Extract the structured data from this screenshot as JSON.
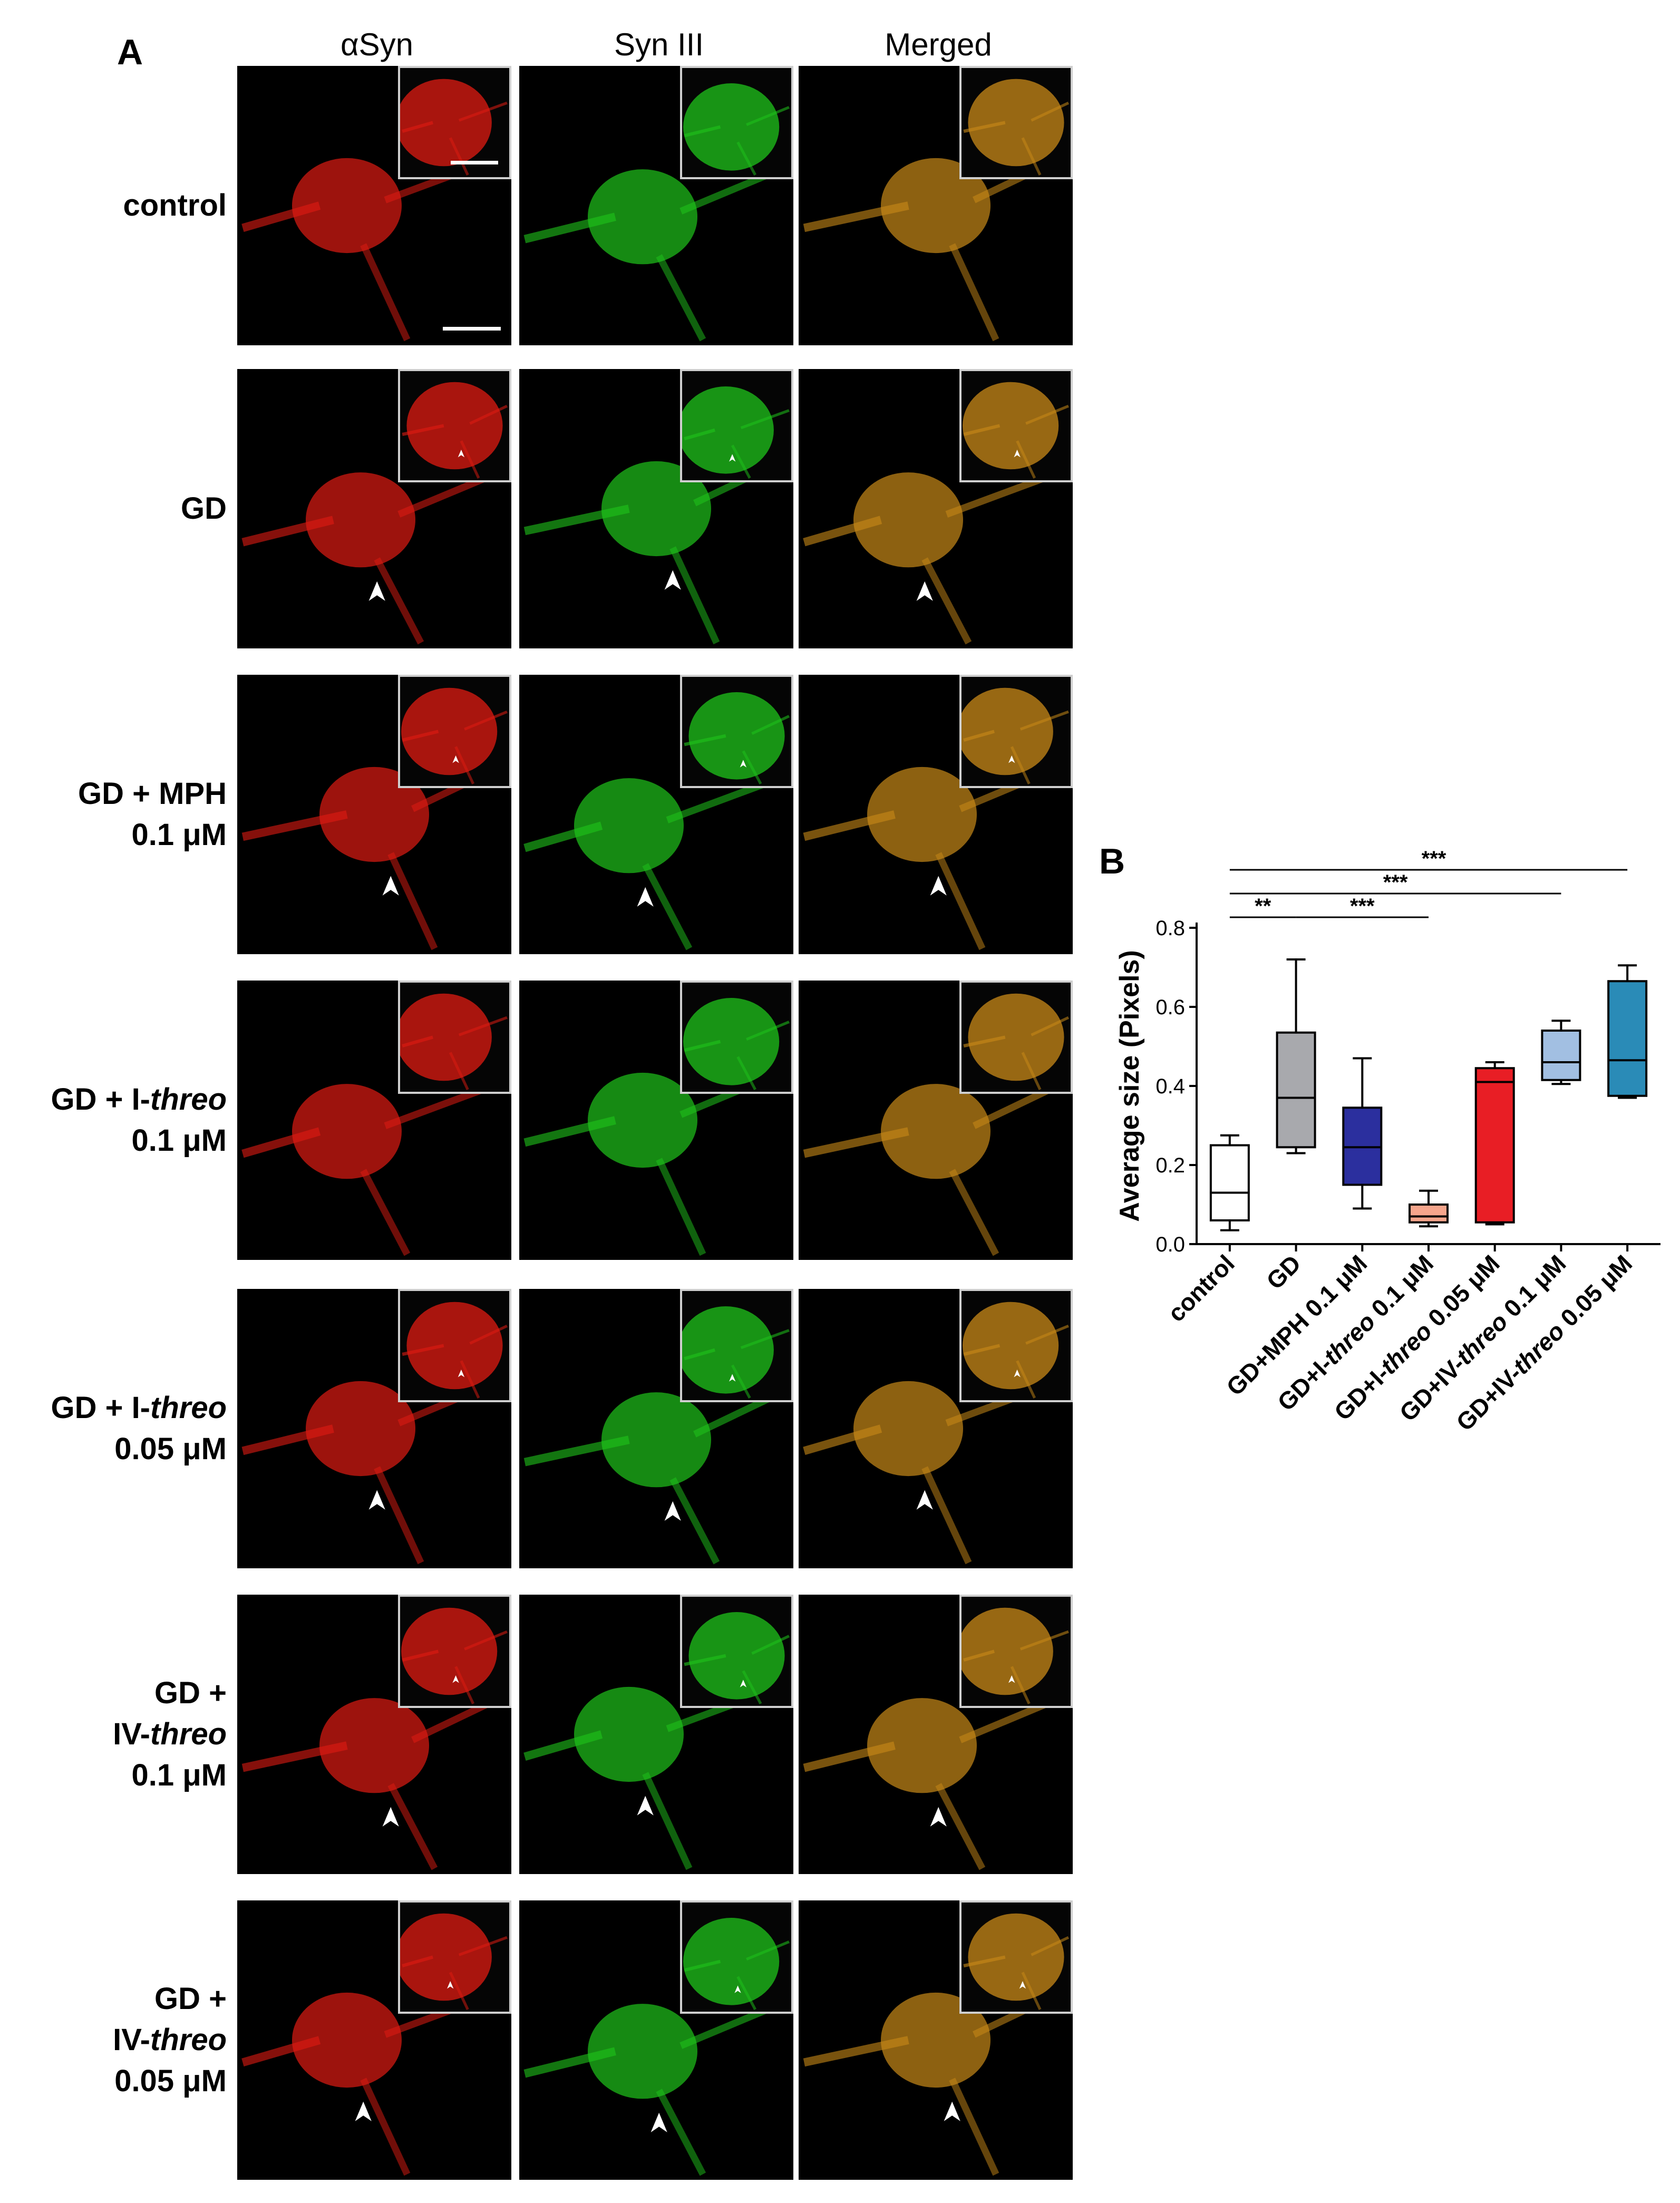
{
  "panel_a": {
    "letter": "A",
    "columns": [
      "αSyn",
      "Syn III",
      "Merged"
    ],
    "rows": [
      {
        "label_lines": [
          "control"
        ],
        "arrowheads": false
      },
      {
        "label_lines": [
          "GD"
        ],
        "arrowheads": true
      },
      {
        "label_lines": [
          "GD + MPH",
          "0.1  μM"
        ],
        "arrowheads": true
      },
      {
        "label_lines": [
          "GD + I-threo",
          "0.1  μM"
        ],
        "arrowheads": false
      },
      {
        "label_lines": [
          "GD + I-threo",
          "0.05 μM"
        ],
        "arrowheads": true
      },
      {
        "label_lines": [
          "GD +",
          "IV-threo",
          "0.1  μM"
        ],
        "arrowheads": true
      },
      {
        "label_lines": [
          "GD +",
          "IV-threo",
          "0.05 μM"
        ],
        "arrowheads": true
      }
    ],
    "channel_colors": {
      "alpha_syn": "#e01b12",
      "syn_iii": "#1fc41b",
      "merged": "#c98a18"
    }
  },
  "panel_b": {
    "letter": "B",
    "chart_data": {
      "type": "box",
      "ylabel": "Average size (Pixels)",
      "ylim": [
        0.0,
        0.8
      ],
      "yticks": [
        "0.0",
        "0.2",
        "0.4",
        "0.6",
        "0.8"
      ],
      "categories": [
        "control",
        "GD",
        "GD+MPH 0.1  μM",
        "GD+I-threo 0.1  μM",
        "GD+I-threo 0.05 μM",
        "GD+IV-threo 0.1  μM",
        "GD+IV-threo 0.05 μM"
      ],
      "boxes": [
        {
          "min": 0.035,
          "q1": 0.06,
          "median": 0.13,
          "q3": 0.25,
          "max": 0.275,
          "color": "#ffffff"
        },
        {
          "min": 0.23,
          "q1": 0.245,
          "median": 0.37,
          "q3": 0.535,
          "max": 0.72,
          "color": "#a8a9ad"
        },
        {
          "min": 0.09,
          "q1": 0.15,
          "median": 0.245,
          "q3": 0.345,
          "max": 0.47,
          "color": "#2b2f9e"
        },
        {
          "min": 0.045,
          "q1": 0.055,
          "median": 0.07,
          "q3": 0.1,
          "max": 0.135,
          "color": "#f6a58c"
        },
        {
          "min": 0.05,
          "q1": 0.055,
          "median": 0.41,
          "q3": 0.445,
          "max": 0.46,
          "color": "#e81e25"
        },
        {
          "min": 0.405,
          "q1": 0.415,
          "median": 0.46,
          "q3": 0.54,
          "max": 0.565,
          "color": "#a2bfe2"
        },
        {
          "min": 0.37,
          "q1": 0.375,
          "median": 0.465,
          "q3": 0.665,
          "max": 0.705,
          "color": "#2a8bb7"
        }
      ],
      "significance": [
        {
          "from": 0,
          "to": 1,
          "label": "**"
        },
        {
          "from": 1,
          "to": 3,
          "label": "***"
        },
        {
          "from": 0,
          "to": 5,
          "label": "***"
        },
        {
          "from": 0,
          "to": 6,
          "label": "***"
        }
      ]
    }
  }
}
